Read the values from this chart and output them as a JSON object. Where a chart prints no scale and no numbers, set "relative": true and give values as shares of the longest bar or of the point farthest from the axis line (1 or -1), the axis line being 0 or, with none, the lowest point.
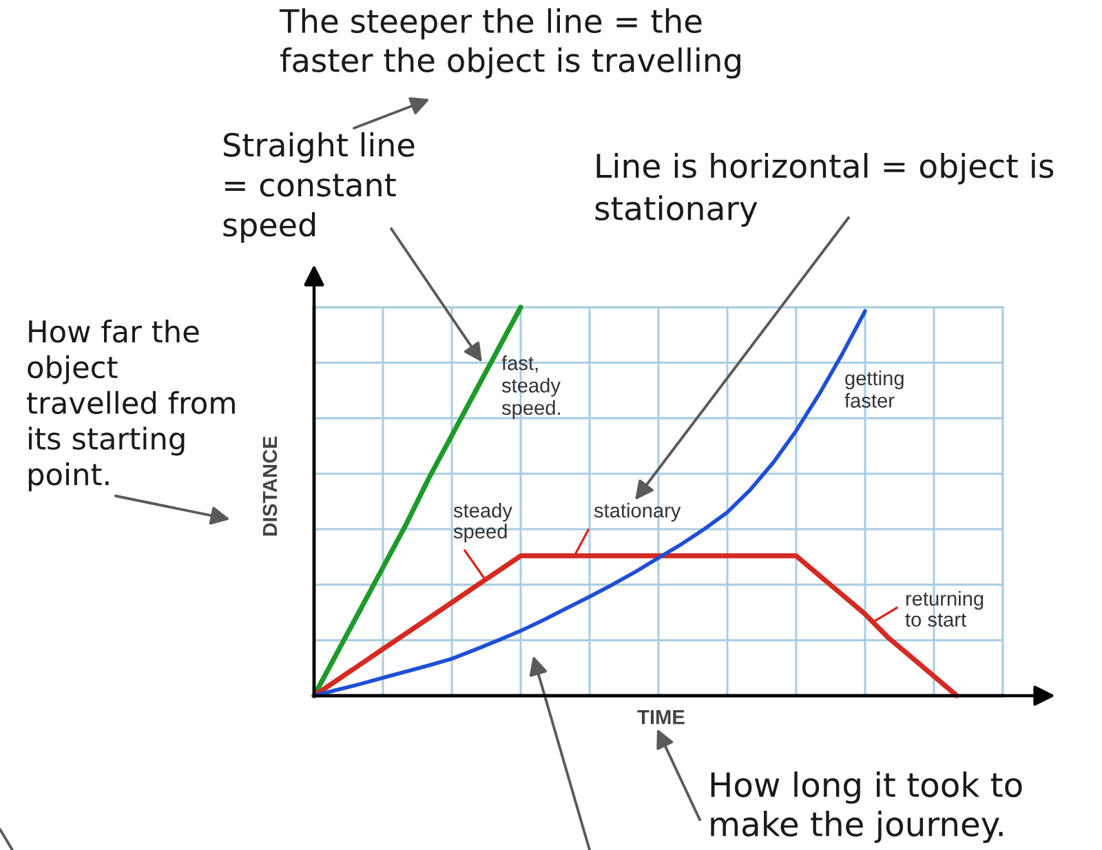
{
  "chart_data": {
    "type": "line",
    "relative": true,
    "xlabel": "TIME",
    "ylabel": "DISTANCE",
    "grid": true,
    "categories": [
      null,
      null,
      null,
      null,
      null,
      null,
      null,
      null,
      null,
      null,
      null,
      null,
      null,
      null,
      null,
      null,
      null,
      null,
      null,
      null,
      null,
      null,
      null,
      null,
      null,
      null,
      null,
      null,
      null,
      null,
      null
    ],
    "series": [
      {
        "name": "fast,\nsteady\nspeed.",
        "color": "#1e9a2a",
        "values": [
          0,
          0.11,
          0.22,
          0.33,
          0.44,
          0.56,
          0.67,
          0.78,
          0.89,
          1,
          null,
          null,
          null,
          null,
          null,
          null,
          null,
          null,
          null,
          null,
          null,
          null,
          null,
          null,
          null,
          null,
          null,
          null,
          null,
          null,
          null
        ]
      },
      {
        "color": "#d42a22",
        "values": [
          0,
          0.04,
          0.08,
          0.12,
          0.16,
          0.2,
          0.24,
          0.28,
          0.32,
          0.36,
          0.36,
          0.36,
          0.36,
          0.36,
          0.36,
          0.36,
          0.36,
          0.36,
          0.36,
          0.36,
          0.36,
          0.36,
          0.31,
          0.26,
          0.21,
          0.15,
          0.1,
          0.05,
          0,
          null,
          null
        ]
      },
      {
        "name": "getting\nfaster",
        "color": "#1f4fd4",
        "values": [
          0,
          0.015,
          0.03,
          0.046,
          0.062,
          0.078,
          0.095,
          0.118,
          0.142,
          0.167,
          0.195,
          0.225,
          0.255,
          0.286,
          0.319,
          0.355,
          0.39,
          0.429,
          0.472,
          0.53,
          0.6,
          0.682,
          0.776,
          0.879,
          0.99,
          null,
          null,
          null,
          null,
          null,
          null
        ]
      }
    ],
    "annotations": [
      "The steeper the line = the\nfaster the object is travelling",
      "Straight line\n= constant\nspeed",
      "Line is horizontal = object is\nstationary",
      "How far the\nobject\ntravelled from\nits starting\npoint.",
      "How long it took to\nmake the journey.",
      {
        "text": "steady\nspeed",
        "y": 0.3
      },
      {
        "text": "stationary",
        "y": 0.36
      },
      "returning\nto start"
    ]
  }
}
